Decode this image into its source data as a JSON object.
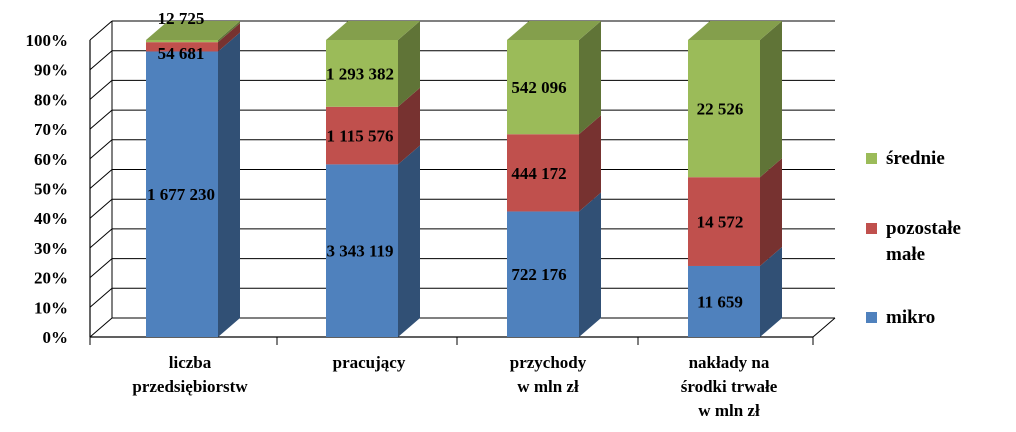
{
  "chart_data": {
    "type": "bar",
    "stacked": "percent",
    "three_d": true,
    "title": "",
    "xlabel": "",
    "ylabel": "",
    "ylim": [
      0,
      100
    ],
    "y_ticks": [
      "0%",
      "10%",
      "20%",
      "30%",
      "40%",
      "50%",
      "60%",
      "70%",
      "80%",
      "90%",
      "100%"
    ],
    "grid": true,
    "legend_position": "right",
    "categories": [
      [
        "liczba",
        "przedsiębiorstw"
      ],
      [
        "pracujący"
      ],
      [
        "przychody",
        "w mln zł"
      ],
      [
        "nakłady na",
        "środki trwałe",
        "w mln zł"
      ]
    ],
    "series": [
      {
        "name": "mikro",
        "color": "#4F81BD",
        "values": [
          1677230,
          3343119,
          722176,
          11659
        ],
        "labels": [
          "1 677 230",
          "3 343 119",
          "722 176",
          "11 659"
        ]
      },
      {
        "name": "pozostałe małe",
        "legend_lines": [
          "pozostałe",
          "małe"
        ],
        "color": "#C0504D",
        "values": [
          54681,
          1115576,
          444172,
          14572
        ],
        "labels": [
          "54 681",
          "1 115 576",
          "444 172",
          "14 572"
        ]
      },
      {
        "name": "średnie",
        "color": "#9BBB59",
        "values": [
          12725,
          1293382,
          542096,
          22526
        ],
        "labels": [
          "12 725",
          "1 293 382",
          "542 096",
          "22 526"
        ]
      }
    ]
  }
}
